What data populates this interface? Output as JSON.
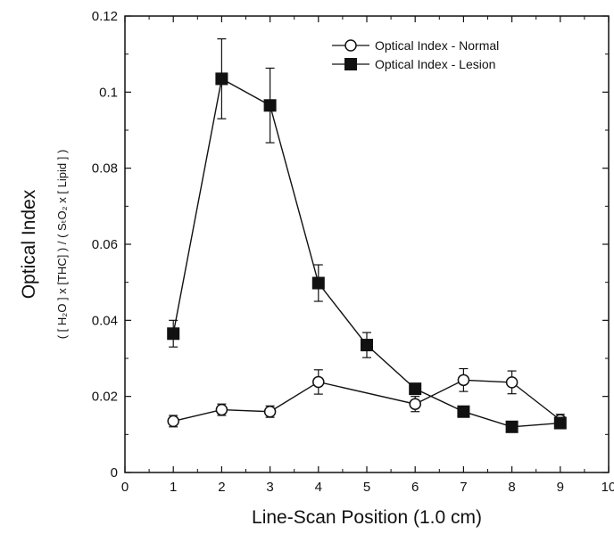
{
  "chart_data": {
    "type": "line",
    "xlabel": "Line-Scan Position (1.0 cm)",
    "ylabel": "Optical Index",
    "ylabel_sub": "( [ H₂O ] x [THC] ) / ( SₜO₂ x [ Lipid ] )",
    "xlim": [
      0,
      10
    ],
    "ylim": [
      0,
      0.12
    ],
    "x_ticks": [
      0,
      1,
      2,
      3,
      4,
      5,
      6,
      7,
      8,
      9,
      10
    ],
    "x_tick_labels": [
      "0",
      "1",
      "2",
      "3",
      "4",
      "5",
      "6",
      "7",
      "8",
      "9",
      "10"
    ],
    "y_ticks": [
      0,
      0.02,
      0.04,
      0.06,
      0.08,
      0.1,
      0.12
    ],
    "y_tick_labels": [
      "0",
      "0.02",
      "0.04",
      "0.06",
      "0.08",
      "0.1",
      "0.12"
    ],
    "grid": false,
    "legend_position": "top-right",
    "series": [
      {
        "name": "Optical Index - Normal",
        "marker": "open-circle",
        "color": "#111111",
        "x": [
          1,
          2,
          3,
          4,
          6,
          7,
          8,
          9
        ],
        "y": [
          0.0135,
          0.0165,
          0.016,
          0.0238,
          0.018,
          0.0243,
          0.0237,
          0.0138
        ],
        "error": [
          0.0015,
          0.0015,
          0.0015,
          0.0032,
          0.002,
          0.003,
          0.003,
          0.0015
        ]
      },
      {
        "name": "Optical Index - Lesion",
        "marker": "filled-square",
        "color": "#111111",
        "x": [
          1,
          2,
          3,
          4,
          5,
          6,
          7,
          8,
          9
        ],
        "y": [
          0.0365,
          0.1035,
          0.0965,
          0.0498,
          0.0335,
          0.022,
          0.016,
          0.012,
          0.013
        ],
        "error": [
          0.0035,
          0.0105,
          0.0098,
          0.0048,
          0.0033,
          0,
          0,
          0,
          0
        ]
      }
    ]
  }
}
